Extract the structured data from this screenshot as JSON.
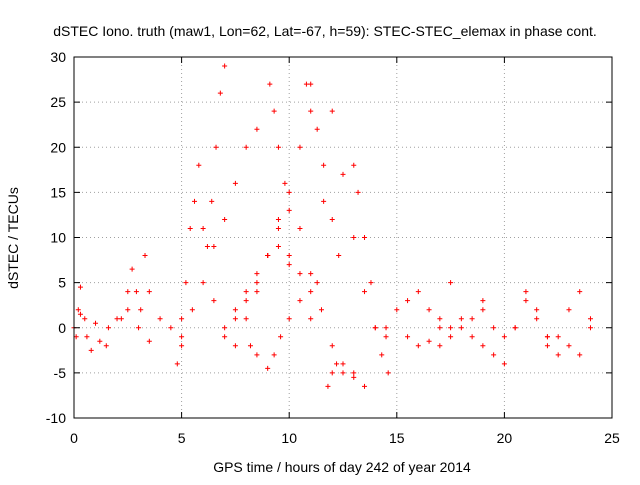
{
  "chart_data": {
    "type": "scatter",
    "title": "dSTEC Iono. truth (maw1, Lon=62, Lat=-67, h=59): STEC-STEC_elemax in phase cont.",
    "xlabel": "GPS time / hours of day 242 of year 2014",
    "ylabel": "dSTEC  / TECUs",
    "xlim": [
      0,
      25
    ],
    "ylim": [
      -10,
      30
    ],
    "x_ticks": [
      0,
      5,
      10,
      15,
      20,
      25
    ],
    "y_ticks": [
      -10,
      -5,
      0,
      5,
      10,
      15,
      20,
      25,
      30
    ],
    "x_tick_labels": [
      "0",
      "5",
      "10",
      "15",
      "20",
      "25"
    ],
    "y_tick_labels": [
      "-10",
      "-5",
      "0",
      "5",
      "10",
      "15",
      "20",
      "25",
      "30"
    ],
    "grid": true,
    "marker": "+",
    "color": "#ff0000",
    "series": [
      {
        "x": [
          0,
          0.3,
          0.6,
          1,
          1.5,
          2,
          2.5,
          3,
          3.5,
          4,
          4.5,
          5
        ],
        "y": [
          0,
          1.5,
          -1,
          0.5,
          -2,
          1,
          2,
          0,
          -1.5,
          1,
          0,
          -2
        ]
      },
      {
        "x": [
          0.1,
          0.2,
          0.3,
          0.5,
          0.8,
          1.2,
          1.6
        ],
        "y": [
          -1,
          2,
          4.5,
          1,
          -2.5,
          -1.5,
          0
        ]
      },
      {
        "x": [
          2.2,
          2.5,
          2.7,
          2.9,
          3.1,
          3.3,
          3.5
        ],
        "y": [
          1,
          4,
          6.5,
          4,
          2,
          8,
          4
        ]
      },
      {
        "x": [
          4.8,
          5,
          5.2,
          5.4,
          5.6,
          5.8,
          6,
          6.2,
          6.4,
          6.6,
          6.8,
          7
        ],
        "y": [
          -4,
          1,
          5,
          11,
          14,
          18,
          11,
          9,
          14,
          20,
          26,
          29
        ]
      },
      {
        "x": [
          5,
          5.5,
          6,
          6.5,
          7,
          7.5,
          8,
          8.5
        ],
        "y": [
          -1,
          2,
          5,
          9,
          12,
          16,
          20,
          22
        ]
      },
      {
        "x": [
          6.5,
          7,
          7.5,
          8,
          8.5,
          9,
          9.5,
          10
        ],
        "y": [
          3,
          0,
          -2,
          1,
          4,
          8,
          11,
          7
        ]
      },
      {
        "x": [
          7.5,
          8,
          8.5,
          9,
          9.5,
          10,
          10.5
        ],
        "y": [
          2,
          4,
          6,
          8,
          9,
          8,
          6
        ]
      },
      {
        "x": [
          7,
          7.5,
          8,
          8.5,
          9,
          9.5,
          10,
          10.5,
          11
        ],
        "y": [
          -1,
          1,
          3,
          5,
          8,
          12,
          15,
          20,
          27
        ]
      },
      {
        "x": [
          9.1,
          9.3,
          9.5,
          9.8,
          10,
          10.5,
          11,
          11.5,
          12,
          12.5,
          13
        ],
        "y": [
          27,
          24,
          20,
          16,
          13,
          11,
          6,
          2,
          -2,
          -4,
          -5
        ]
      },
      {
        "x": [
          8.2,
          8.5,
          9,
          9.3,
          9.6,
          10,
          10.5,
          11
        ],
        "y": [
          -2,
          -3,
          -4.5,
          -3,
          -1,
          1,
          3,
          4
        ]
      },
      {
        "x": [
          10.8,
          11,
          11.3,
          11.6,
          12,
          12.3
        ],
        "y": [
          27,
          24,
          22,
          18,
          12,
          8
        ]
      },
      {
        "x": [
          11.8,
          12,
          12.2,
          12.5,
          13,
          13.5
        ],
        "y": [
          -6.5,
          -5,
          -4,
          -5,
          -5.5,
          -6.5
        ]
      },
      {
        "x": [
          11,
          11.3,
          11.6,
          12,
          12.5,
          13,
          13.5,
          14,
          14.5
        ],
        "y": [
          1,
          5,
          14,
          24,
          17,
          10,
          4,
          0,
          -1
        ]
      },
      {
        "x": [
          13,
          13.2,
          13.5,
          13.8,
          14,
          14.3,
          14.6
        ],
        "y": [
          18,
          15,
          10,
          5,
          0,
          -3,
          -5
        ]
      },
      {
        "x": [
          14.5,
          15,
          15.5,
          16,
          16.5,
          17,
          17.5
        ],
        "y": [
          0,
          2,
          3,
          4,
          2,
          1,
          0
        ]
      },
      {
        "x": [
          15.5,
          16,
          16.5,
          17,
          17.5,
          18,
          18.5,
          19
        ],
        "y": [
          -1,
          -2,
          -1.5,
          -2,
          -1,
          0,
          1,
          2
        ]
      },
      {
        "x": [
          17,
          17.5,
          18,
          18.5,
          19,
          19.5,
          20
        ],
        "y": [
          0,
          5,
          1,
          -1,
          3,
          0,
          -1
        ]
      },
      {
        "x": [
          19,
          19.5,
          20,
          20.5,
          21,
          21.5,
          22
        ],
        "y": [
          -2,
          -3,
          -4,
          0,
          4,
          2,
          -1
        ]
      },
      {
        "x": [
          20.5,
          21,
          21.5,
          22,
          22.5,
          23,
          23.5,
          24
        ],
        "y": [
          0,
          3,
          1,
          -2,
          -1,
          2,
          4,
          0
        ]
      },
      {
        "x": [
          22,
          22.5,
          23,
          23.5,
          24
        ],
        "y": [
          -1,
          -3,
          -2,
          -3,
          1
        ]
      }
    ]
  }
}
